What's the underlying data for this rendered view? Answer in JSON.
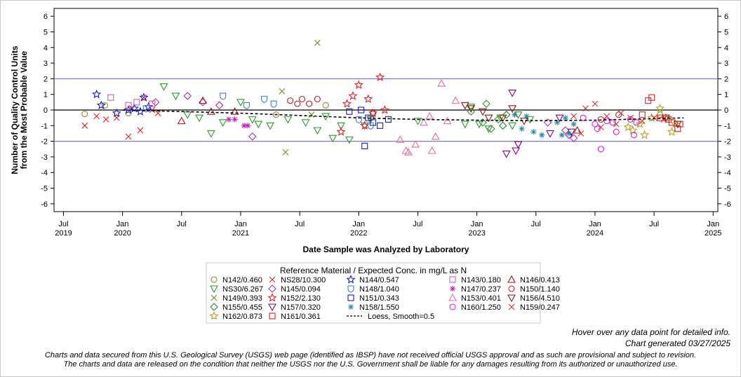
{
  "chart_data": {
    "type": "scatter",
    "title": "",
    "xlabel": "Date Sample was Analyzed by Laboratory",
    "ylabel": [
      "Number of Quality Control Units",
      "from the Most Probable Value"
    ],
    "ylim": [
      -6.5,
      6.5
    ],
    "y_ticks": [
      "6",
      "5",
      "4",
      "3",
      "2",
      "1",
      "0",
      "-1",
      "-2",
      "-3",
      "-4",
      "-5",
      "-6"
    ],
    "x_range": [
      2019.42,
      2025.04
    ],
    "x_ticks": [
      {
        "t": 2019.5,
        "label": "Jul",
        "year": "2019"
      },
      {
        "t": 2020.0,
        "label": "Jan",
        "year": "2020"
      },
      {
        "t": 2020.5,
        "label": "Jul",
        "year": ""
      },
      {
        "t": 2021.0,
        "label": "Jan",
        "year": "2021"
      },
      {
        "t": 2021.5,
        "label": "Jul",
        "year": ""
      },
      {
        "t": 2022.0,
        "label": "Jan",
        "year": "2022"
      },
      {
        "t": 2022.5,
        "label": "Jul",
        "year": ""
      },
      {
        "t": 2023.0,
        "label": "Jan",
        "year": "2023"
      },
      {
        "t": 2023.5,
        "label": "Jul",
        "year": ""
      },
      {
        "t": 2024.0,
        "label": "Jan",
        "year": "2024"
      },
      {
        "t": 2024.5,
        "label": "Jul",
        "year": ""
      },
      {
        "t": 2025.0,
        "label": "Jan",
        "year": "2025"
      }
    ],
    "reference_lines": [
      {
        "y": 2,
        "color": "#7b7bd6"
      },
      {
        "y": 0,
        "color": "#000000"
      },
      {
        "y": -2,
        "color": "#7b7bd6"
      }
    ],
    "loess": {
      "name": "Loess, Smooth=0.5",
      "points": [
        [
          2020.0,
          0.0
        ],
        [
          2020.5,
          -0.1
        ],
        [
          2021.0,
          -0.2
        ],
        [
          2021.5,
          -0.35
        ],
        [
          2022.0,
          -0.5
        ],
        [
          2022.5,
          -0.6
        ],
        [
          2023.0,
          -0.65
        ],
        [
          2023.5,
          -0.68
        ],
        [
          2024.0,
          -0.65
        ],
        [
          2024.5,
          -0.55
        ],
        [
          2024.75,
          -0.5
        ]
      ]
    },
    "series": [
      {
        "name": "N142/0.460",
        "symbol": "circle",
        "color": "#8a8a30",
        "points": [
          [
            2019.68,
            -0.25
          ],
          [
            2019.85,
            0.3
          ],
          [
            2020.05,
            -0.2
          ],
          [
            2021.3,
            -0.3
          ],
          [
            2021.72,
            0.3
          ],
          [
            2022.1,
            -0.5
          ],
          [
            2024.55,
            -0.3
          ]
        ]
      },
      {
        "name": "NS28/10.300",
        "symbol": "x",
        "color": "#e02020",
        "points": [
          [
            2019.68,
            -1.0
          ],
          [
            2019.78,
            -0.4
          ],
          [
            2019.86,
            -0.6
          ],
          [
            2019.95,
            -0.5
          ],
          [
            2020.05,
            -1.7
          ],
          [
            2020.08,
            0.1
          ],
          [
            2020.15,
            -1.3
          ],
          [
            2020.18,
            0.8
          ],
          [
            2020.25,
            0.0
          ],
          [
            2020.3,
            -0.2
          ]
        ]
      },
      {
        "name": "N149/0.393",
        "symbol": "x",
        "color": "#6b8e23",
        "points": [
          [
            2021.35,
            1.2
          ],
          [
            2021.38,
            -2.7
          ],
          [
            2021.65,
            4.3
          ],
          [
            2021.6,
            -0.3
          ]
        ]
      },
      {
        "name": "N155/0.455",
        "symbol": "diamond",
        "color": "#2e8b2e",
        "points": [
          [
            2022.95,
            -0.1
          ],
          [
            2023.05,
            -0.8
          ],
          [
            2023.08,
            0.4
          ],
          [
            2023.12,
            -1.2
          ],
          [
            2023.18,
            -0.6
          ],
          [
            2023.22,
            -1.0
          ],
          [
            2023.25,
            -0.3
          ]
        ]
      },
      {
        "name": "N162/0.873",
        "symbol": "star",
        "color": "#b8a020",
        "points": [
          [
            2024.28,
            -1.1
          ],
          [
            2024.32,
            -1.3
          ],
          [
            2024.38,
            -0.9
          ],
          [
            2024.42,
            -1.6
          ],
          [
            2024.48,
            -0.5
          ],
          [
            2024.55,
            0.1
          ],
          [
            2024.6,
            -0.5
          ],
          [
            2024.65,
            -1.4
          ],
          [
            2024.68,
            -0.9
          ]
        ]
      },
      {
        "name": "NS30/6.267",
        "symbol": "triangle-down",
        "color": "#2a9d2a",
        "points": [
          [
            2020.35,
            1.5
          ],
          [
            2020.45,
            0.9
          ],
          [
            2020.55,
            -0.3
          ],
          [
            2020.65,
            -0.5
          ],
          [
            2020.75,
            -1.5
          ],
          [
            2020.85,
            -0.8
          ],
          [
            2021.0,
            0.5
          ],
          [
            2021.1,
            -0.6
          ],
          [
            2021.15,
            -0.9
          ],
          [
            2021.25,
            -1.0
          ],
          [
            2021.4,
            -0.6
          ],
          [
            2021.55,
            -0.8
          ],
          [
            2021.65,
            -1.3
          ],
          [
            2021.72,
            -0.4
          ],
          [
            2021.78,
            -1.8
          ],
          [
            2021.85,
            -1.0
          ],
          [
            2021.92,
            -1.9
          ],
          [
            2022.05,
            -1.0
          ],
          [
            2022.1,
            -0.6
          ],
          [
            2022.5,
            -0.7
          ],
          [
            2022.9,
            -0.9
          ],
          [
            2022.95,
            0.2
          ],
          [
            2023.02,
            -0.9
          ],
          [
            2023.1,
            -1.2
          ],
          [
            2023.2,
            -0.5
          ],
          [
            2023.3,
            -1.0
          ],
          [
            2023.35,
            -0.3
          ],
          [
            2023.45,
            -0.6
          ]
        ]
      },
      {
        "name": "N145/0.094",
        "symbol": "diamond",
        "color": "#b030b0",
        "points": [
          [
            2020.28,
            0.5
          ],
          [
            2020.55,
            0.9
          ],
          [
            2020.68,
            0.5
          ],
          [
            2020.82,
            0.3
          ],
          [
            2021.1,
            -1.7
          ],
          [
            2023.6,
            -0.8
          ],
          [
            2023.75,
            -1.3
          ],
          [
            2023.78,
            -1.6
          ],
          [
            2023.82,
            -1.8
          ]
        ]
      },
      {
        "name": "N152/2.130",
        "symbol": "star",
        "color": "#e02020",
        "points": [
          [
            2021.9,
            0.4
          ],
          [
            2021.95,
            0.9
          ],
          [
            2022.0,
            1.6
          ],
          [
            2022.05,
            -1.0
          ],
          [
            2022.08,
            0.7
          ],
          [
            2022.12,
            -0.2
          ],
          [
            2022.18,
            2.1
          ],
          [
            2022.22,
            0.0
          ],
          [
            2021.85,
            -1.4
          ]
        ]
      },
      {
        "name": "N157/0.320",
        "symbol": "triangle-down",
        "color": "#8b0080",
        "points": [
          [
            2023.25,
            -2.8
          ],
          [
            2023.3,
            1.1
          ],
          [
            2023.35,
            -2.2
          ],
          [
            2023.33,
            -2.6
          ],
          [
            2023.7,
            -0.5
          ],
          [
            2023.62,
            -1.5
          ],
          [
            2023.8,
            -1.4
          ]
        ]
      },
      {
        "name": "N161/0.361",
        "symbol": "square",
        "color": "#e02020",
        "points": [
          [
            2024.4,
            -0.3
          ],
          [
            2024.45,
            0.6
          ],
          [
            2024.48,
            0.8
          ],
          [
            2024.55,
            -0.5
          ],
          [
            2024.62,
            -0.6
          ],
          [
            2024.65,
            -0.8
          ],
          [
            2024.7,
            -1.2
          ],
          [
            2024.72,
            -0.9
          ]
        ]
      },
      {
        "name": "N144/0.547",
        "symbol": "star",
        "color": "#1a1ad0",
        "points": [
          [
            2019.78,
            1.0
          ],
          [
            2019.82,
            0.3
          ],
          [
            2019.95,
            -0.2
          ],
          [
            2020.05,
            0.0
          ],
          [
            2020.1,
            0.1
          ],
          [
            2020.15,
            -0.1
          ],
          [
            2020.18,
            0.8
          ],
          [
            2020.22,
            0.2
          ]
        ]
      },
      {
        "name": "N148/1.040",
        "symbol": "shield",
        "color": "#3a7fd0",
        "points": [
          [
            2020.2,
            0.1
          ],
          [
            2020.85,
            0.9
          ],
          [
            2021.05,
            0.3
          ],
          [
            2021.2,
            0.7
          ],
          [
            2021.28,
            0.4
          ],
          [
            2022.0,
            -0.6
          ],
          [
            2022.1,
            -1.0
          ]
        ]
      },
      {
        "name": "N151/0.343",
        "symbol": "square",
        "color": "#1a1ad0",
        "points": [
          [
            2021.92,
            -0.1
          ],
          [
            2022.02,
            0.0
          ],
          [
            2022.05,
            -2.3
          ],
          [
            2022.08,
            -0.5
          ],
          [
            2022.12,
            -0.8
          ],
          [
            2022.18,
            -1.0
          ],
          [
            2022.25,
            -0.6
          ]
        ]
      },
      {
        "name": "N158/1.550",
        "symbol": "asterisk",
        "color": "#2a8aa0",
        "points": [
          [
            2023.32,
            -0.3
          ],
          [
            2023.38,
            -1.2
          ],
          [
            2023.42,
            -0.4
          ],
          [
            2023.48,
            -1.4
          ],
          [
            2023.55,
            -1.6
          ],
          [
            2023.68,
            -0.8
          ],
          [
            2023.72,
            -1.6
          ],
          [
            2023.75,
            -0.5
          ],
          [
            2023.78,
            -1.5
          ],
          [
            2023.82,
            -0.9
          ]
        ]
      },
      {
        "name": "N143/0.180",
        "symbol": "square",
        "color": "#d060a0",
        "points": [
          [
            2019.9,
            0.8
          ],
          [
            2020.05,
            0.3
          ],
          [
            2020.12,
            0.5
          ],
          [
            2020.25,
            0.4
          ]
        ]
      },
      {
        "name": "N147/0.237",
        "symbol": "asterisk",
        "color": "#c020c0",
        "points": [
          [
            2020.9,
            -0.6
          ],
          [
            2021.03,
            -1.0
          ],
          [
            2021.06,
            -1.0
          ],
          [
            2020.95,
            -0.6
          ]
        ]
      },
      {
        "name": "N153/0.401",
        "symbol": "triangle",
        "color": "#e070a0",
        "points": [
          [
            2022.35,
            -1.9
          ],
          [
            2022.4,
            -2.6
          ],
          [
            2022.42,
            -2.7
          ],
          [
            2022.48,
            -2.2
          ],
          [
            2022.55,
            -0.8
          ],
          [
            2022.6,
            -0.4
          ],
          [
            2022.65,
            -1.7
          ],
          [
            2022.7,
            1.7
          ],
          [
            2022.75,
            -0.7
          ],
          [
            2022.82,
            0.6
          ],
          [
            2022.62,
            -2.6
          ]
        ]
      },
      {
        "name": "N160/1.250",
        "symbol": "circle",
        "color": "#e020e0",
        "points": [
          [
            2023.9,
            -0.5
          ],
          [
            2024.0,
            -0.9
          ],
          [
            2024.02,
            -1.2
          ],
          [
            2024.05,
            -2.5
          ],
          [
            2024.1,
            -0.7
          ],
          [
            2024.15,
            -0.8
          ],
          [
            2024.18,
            -1.4
          ],
          [
            2024.3,
            -0.6
          ],
          [
            2024.33,
            -1.6
          ],
          [
            2024.35,
            -0.8
          ]
        ]
      },
      {
        "name": "N146/0.413",
        "symbol": "triangle",
        "color": "#a01818",
        "points": [
          [
            2020.5,
            -0.7
          ],
          [
            2020.68,
            0.6
          ],
          [
            2020.75,
            -0.1
          ],
          [
            2020.95,
            -0.1
          ],
          [
            2023.85,
            -1.3
          ]
        ]
      },
      {
        "name": "N150/1.140",
        "symbol": "circle",
        "color": "#c02020",
        "points": [
          [
            2021.42,
            0.6
          ],
          [
            2021.48,
            0.4
          ],
          [
            2021.52,
            0.7
          ],
          [
            2021.58,
            0.4
          ],
          [
            2021.65,
            0.7
          ],
          [
            2022.12,
            -0.2
          ],
          [
            2024.05,
            -0.6
          ],
          [
            2024.2,
            -0.3
          ]
        ]
      },
      {
        "name": "N156/4.510",
        "symbol": "triangle-down",
        "color": "#8b1a1a",
        "points": [
          [
            2022.9,
            0.3
          ],
          [
            2022.95,
            0.1
          ],
          [
            2023.05,
            -0.1
          ],
          [
            2023.1,
            -0.5
          ],
          [
            2023.22,
            -0.5
          ],
          [
            2023.3,
            0.1
          ],
          [
            2023.4,
            -0.7
          ],
          [
            2024.6,
            -0.5
          ],
          [
            2024.7,
            -0.9
          ]
        ]
      },
      {
        "name": "N159/0.247",
        "symbol": "x",
        "color": "#d03030",
        "points": [
          [
            2023.82,
            -0.4
          ],
          [
            2023.88,
            -1.5
          ],
          [
            2023.92,
            0.1
          ],
          [
            2024.0,
            0.4
          ],
          [
            2024.05,
            -1.1
          ],
          [
            2024.1,
            -0.4
          ],
          [
            2024.18,
            -0.9
          ],
          [
            2024.22,
            -0.2
          ],
          [
            2024.3,
            -0.5
          ],
          [
            2024.4,
            -0.7
          ],
          [
            2024.5,
            -0.5
          ],
          [
            2024.58,
            -0.6
          ]
        ]
      }
    ],
    "legend": {
      "title": "Reference Material / Expected Conc. in mg/L as N",
      "position": "bottom",
      "order": [
        "N142/0.460",
        "NS28/10.300",
        "N144/0.547",
        "N143/0.180",
        "N146/0.413",
        "NS30/6.267",
        "N145/0.094",
        "N148/1.040",
        "N147/0.237",
        "N150/1.140",
        "N149/0.393",
        "N152/2.130",
        "N151/0.343",
        "N153/0.401",
        "N156/4.510",
        "N155/0.455",
        "N157/0.320",
        "N158/1.550",
        "N160/1.250",
        "N159/0.247",
        "N162/0.873",
        "N161/0.361",
        "Loess, Smooth=0.5"
      ]
    }
  },
  "notes": {
    "hover": "Hover over any data point for detailed info.",
    "generated": "Chart generated 03/27/2025",
    "disclaimer_1": "Charts and data secured from this U.S. Geological Survey (USGS) web page (identified as IBSP) have not received official USGS approval and as such are provisional and subject to revision.",
    "disclaimer_2": "The charts and data are released on the condition that neither the USGS nor the U.S. Government shall be liable for any damages resulting from its authorized or unauthorized use."
  }
}
